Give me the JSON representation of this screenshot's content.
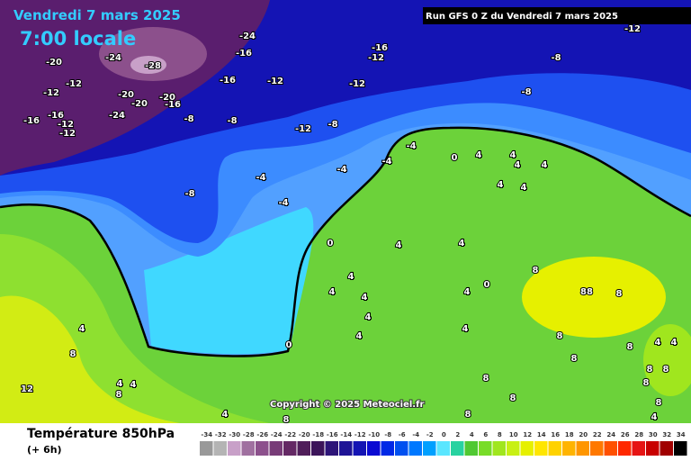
{
  "header": {
    "date": "Vendredi 7 mars 2025",
    "time": "7:00 locale",
    "run": "Run GFS 0 Z du Vendredi 7 mars 2025"
  },
  "copyright": "Copyright © 2025 Meteociel.fr",
  "footer": {
    "title": "Température 850hPa",
    "subtitle": "(+ 6h)"
  },
  "scale": {
    "labels": [
      -34,
      -32,
      -30,
      -28,
      -26,
      -24,
      -22,
      -20,
      -18,
      -16,
      -14,
      -12,
      -10,
      -8,
      -6,
      -4,
      -2,
      0,
      2,
      4,
      6,
      8,
      10,
      12,
      14,
      16,
      18,
      20,
      22,
      24,
      26,
      28,
      30,
      32,
      34
    ],
    "colors": [
      "#999999",
      "#b4b4b4",
      "#c8a0c8",
      "#a070a0",
      "#8c508c",
      "#783c78",
      "#642864",
      "#501e5a",
      "#3c145a",
      "#2d1478",
      "#1e1496",
      "#1414b4",
      "#0a0ad2",
      "#0028e6",
      "#0050f0",
      "#0078ff",
      "#00a0ff",
      "#5ae6ff",
      "#28d2a0",
      "#50c832",
      "#78dc28",
      "#a0e61e",
      "#c8f014",
      "#e6f000",
      "#ffe600",
      "#ffd200",
      "#ffb400",
      "#ff9600",
      "#ff7800",
      "#ff5000",
      "#ff2800",
      "#e61414",
      "#c80000",
      "#a00000",
      "#000000"
    ]
  },
  "map_labels": [
    "-24",
    "-20",
    "-28",
    "-24",
    "-16",
    "-16",
    "-12",
    "-12",
    "-12",
    "-12",
    "-12",
    "-16",
    "-16",
    "-12",
    "-12",
    "-20",
    "-24",
    "-20",
    "-16",
    "-20",
    "-16",
    "-12",
    "-8",
    "-8",
    "-8",
    "-8",
    "-12",
    "-8",
    "-8",
    "-4",
    "-4",
    "-4",
    "-4",
    "-4",
    "0",
    "0",
    "0",
    "4",
    "4",
    "4",
    "4",
    "4",
    "4",
    "4",
    "4",
    "4",
    "4",
    "4",
    "4",
    "4",
    "4",
    "0",
    "4",
    "8",
    "88",
    "8",
    "8",
    "8",
    "4",
    "4",
    "8",
    "8",
    "8",
    "8",
    "8",
    "8",
    "8",
    "8",
    "4",
    "8",
    "4",
    "4",
    "8",
    "4",
    "12",
    "8",
    "4"
  ]
}
